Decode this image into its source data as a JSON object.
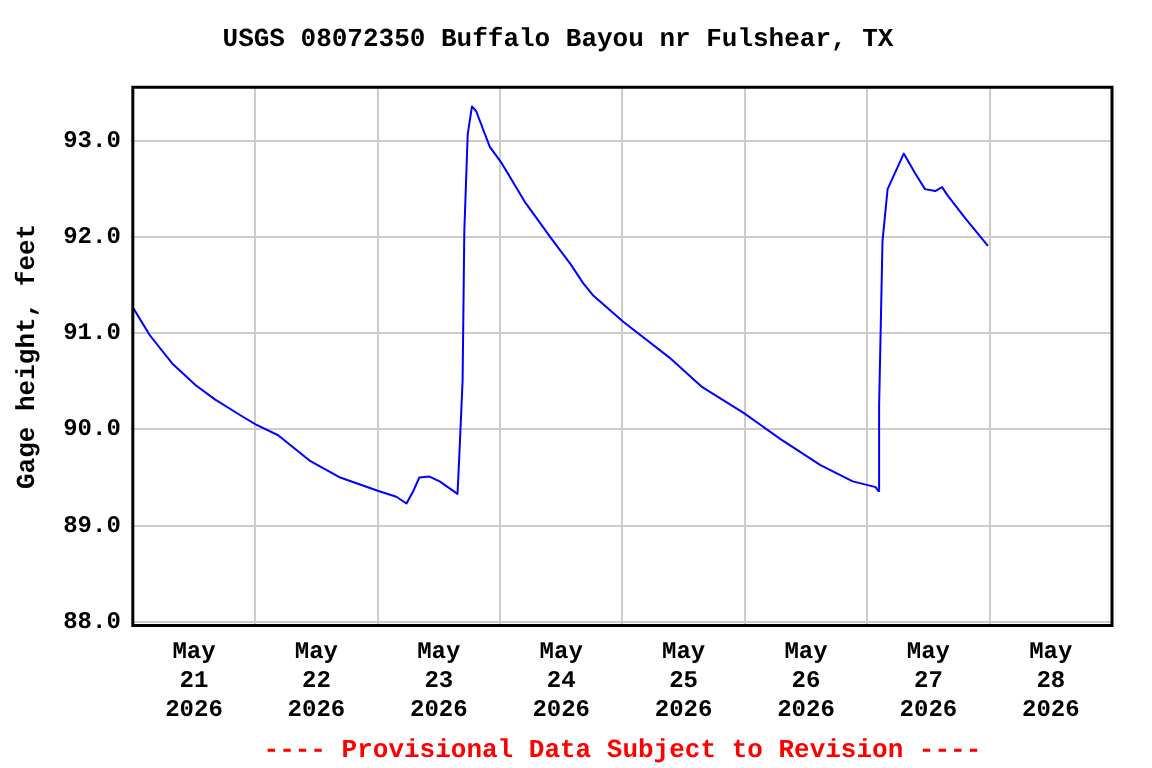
{
  "chart_data": {
    "type": "line",
    "title": "USGS 08072350 Buffalo Bayou nr Fulshear, TX",
    "ylabel": "Gage height, feet",
    "annotations": [
      "---- Provisional Data Subject to Revision ----"
    ],
    "xlim": [
      "2026-05-21T00:00",
      "2026-05-29T00:00"
    ],
    "xticks": [
      {
        "value": "2026-05-21T12:00",
        "label": "May 21 2026"
      },
      {
        "value": "2026-05-22T00:00",
        "label": null
      },
      {
        "value": "2026-05-22T12:00",
        "label": "May 22 2026"
      },
      {
        "value": "2026-05-23T00:00",
        "label": null
      },
      {
        "value": "2026-05-23T12:00",
        "label": "May 23 2026"
      },
      {
        "value": "2026-05-24T00:00",
        "label": null
      },
      {
        "value": "2026-05-24T12:00",
        "label": "May 24 2026"
      },
      {
        "value": "2026-05-25T00:00",
        "label": null
      },
      {
        "value": "2026-05-25T12:00",
        "label": "May 25 2026"
      },
      {
        "value": "2026-05-26T00:00",
        "label": null
      },
      {
        "value": "2026-05-26T12:00",
        "label": "May 26 2026"
      },
      {
        "value": "2026-05-27T00:00",
        "label": null
      },
      {
        "value": "2026-05-27T12:00",
        "label": "May 27 2026"
      },
      {
        "value": "2026-05-28T00:00",
        "label": null
      },
      {
        "value": "2026-05-28T12:00",
        "label": "May 28 2026"
      }
    ],
    "ylim": [
      87.96,
      93.56
    ],
    "yticks": [
      {
        "value": 88,
        "label": "88.0"
      },
      {
        "value": 89,
        "label": "89.0"
      },
      {
        "value": 90,
        "label": "90.0"
      },
      {
        "value": 91,
        "label": "91.0"
      },
      {
        "value": 92,
        "label": "92.0"
      },
      {
        "value": 93,
        "label": "93.0"
      }
    ],
    "grid": true,
    "legend": false,
    "x": [
      "2026-05-21T00:00",
      "2026-05-21T03:20",
      "2026-05-21T07:50",
      "2026-05-21T12:20",
      "2026-05-21T16:10",
      "2026-05-21T21:20",
      "2026-05-22T00:10",
      "2026-05-22T04:30",
      "2026-05-22T10:50",
      "2026-05-22T16:40",
      "2026-05-23T00:10",
      "2026-05-23T03:40",
      "2026-05-23T05:40",
      "2026-05-23T07:00",
      "2026-05-23T08:10",
      "2026-05-23T10:10",
      "2026-05-23T12:10",
      "2026-05-23T15:40",
      "2026-05-23T16:00",
      "2026-05-23T16:40",
      "2026-05-23T17:00",
      "2026-05-23T17:40",
      "2026-05-23T18:30",
      "2026-05-23T19:20",
      "2026-05-23T22:00",
      "2026-05-24T00:20",
      "2026-05-24T04:50",
      "2026-05-24T10:00",
      "2026-05-24T13:50",
      "2026-05-24T16:20",
      "2026-05-24T18:20",
      "2026-05-25T00:10",
      "2026-05-25T09:10",
      "2026-05-25T15:40",
      "2026-05-25T23:50",
      "2026-05-26T07:00",
      "2026-05-26T14:50",
      "2026-05-26T21:10",
      "2026-05-27T01:40",
      "2026-05-27T02:10",
      "2026-05-27T02:20",
      "2026-05-27T03:00",
      "2026-05-27T04:00",
      "2026-05-27T07:10",
      "2026-05-27T09:20",
      "2026-05-27T11:20",
      "2026-05-27T13:20",
      "2026-05-27T14:40",
      "2026-05-27T15:50",
      "2026-05-27T19:10",
      "2026-05-27T23:40"
    ],
    "series": [
      {
        "color": "#0000ff",
        "values": [
          91.27,
          90.98,
          90.68,
          90.46,
          90.31,
          90.14,
          90.05,
          89.94,
          89.67,
          89.5,
          89.36,
          89.3,
          89.23,
          89.36,
          89.5,
          89.51,
          89.46,
          89.33,
          89.7,
          90.51,
          92.06,
          93.07,
          93.36,
          93.31,
          92.94,
          92.77,
          92.37,
          91.99,
          91.72,
          91.52,
          91.39,
          91.12,
          90.75,
          90.44,
          90.17,
          89.9,
          89.63,
          89.46,
          89.4,
          89.36,
          90.24,
          91.96,
          92.5,
          92.87,
          92.67,
          92.5,
          92.48,
          92.52,
          92.43,
          92.2,
          91.91
        ]
      }
    ]
  }
}
